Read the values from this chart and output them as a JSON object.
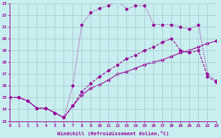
{
  "xlabel": "Windchill (Refroidissement éolien,°C)",
  "bg_color": "#c8eef0",
  "grid_color": "#aacccc",
  "line_color": "#990099",
  "x_min": 0,
  "x_max": 23,
  "y_min": 13,
  "y_max": 23,
  "line1_x": [
    0,
    1,
    2,
    3,
    4,
    5,
    6,
    7,
    8,
    9,
    10,
    11,
    12,
    13,
    14,
    15,
    16,
    17,
    18,
    19,
    20,
    21,
    22,
    23
  ],
  "line1_y": [
    15.0,
    15.0,
    14.7,
    14.1,
    14.1,
    13.7,
    13.3,
    16.0,
    21.2,
    22.2,
    22.6,
    22.8,
    23.2,
    22.5,
    22.8,
    22.8,
    21.2,
    21.2,
    21.2,
    21.0,
    20.8,
    21.2,
    17.0,
    16.4
  ],
  "line2_x": [
    0,
    1,
    2,
    3,
    4,
    5,
    6,
    7,
    8,
    9,
    10,
    11,
    12,
    13,
    14,
    15,
    16,
    17,
    18,
    19,
    20,
    21,
    22,
    23
  ],
  "line2_y": [
    15.0,
    15.0,
    14.7,
    14.1,
    14.1,
    13.7,
    13.3,
    14.3,
    15.5,
    16.2,
    16.8,
    17.3,
    17.8,
    18.3,
    18.6,
    19.0,
    19.3,
    19.7,
    20.0,
    19.0,
    18.8,
    19.0,
    16.8,
    16.3
  ],
  "line3_x": [
    0,
    1,
    2,
    3,
    4,
    5,
    6,
    7,
    8,
    9,
    10,
    11,
    12,
    13,
    14,
    15,
    16,
    17,
    18,
    19,
    20,
    21,
    22,
    23
  ],
  "line3_y": [
    15.0,
    15.0,
    14.7,
    14.1,
    14.1,
    13.7,
    13.3,
    14.3,
    15.2,
    15.8,
    16.1,
    16.5,
    17.0,
    17.2,
    17.5,
    17.8,
    18.0,
    18.2,
    18.5,
    18.8,
    19.0,
    19.3,
    19.6,
    19.8
  ]
}
